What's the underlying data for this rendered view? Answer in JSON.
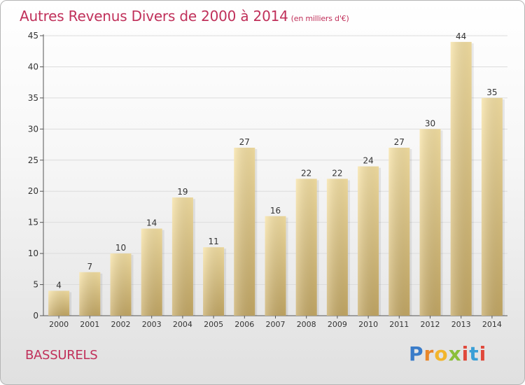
{
  "header": {
    "title": "Autres Revenus Divers de 2000 à 2014",
    "unit": "(en milliers d'€)"
  },
  "footer": {
    "commune": "BASSURELS",
    "logo": "Proxiti"
  },
  "colors": {
    "title": "#c0305a",
    "bar_light": "#f6df9f",
    "bar_dark": "#c9ad68"
  },
  "chart_data": {
    "type": "bar",
    "title": "Autres Revenus Divers de 2000 à 2014",
    "subtitle": "(en milliers d'€)",
    "categories": [
      "2000",
      "2001",
      "2002",
      "2003",
      "2004",
      "2005",
      "2006",
      "2007",
      "2008",
      "2009",
      "2010",
      "2011",
      "2012",
      "2013",
      "2014"
    ],
    "values": [
      4,
      7,
      10,
      14,
      19,
      11,
      27,
      16,
      22,
      22,
      24,
      27,
      30,
      44,
      35
    ],
    "ylim": [
      0,
      45
    ],
    "yticks": [
      0,
      5,
      10,
      15,
      20,
      25,
      30,
      35,
      40,
      45
    ],
    "grid": "horizontal",
    "data_labels": true
  }
}
